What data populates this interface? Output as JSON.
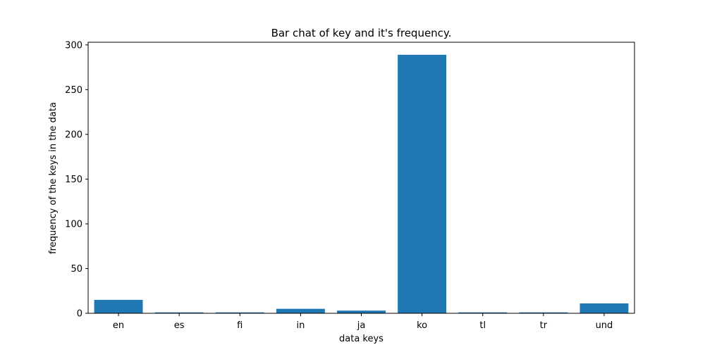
{
  "chart_data": {
    "type": "bar",
    "title": "Bar chat of key and it's frequency.",
    "xlabel": "data keys",
    "ylabel": "frequency of the keys in the data",
    "categories": [
      "en",
      "es",
      "fi",
      "in",
      "ja",
      "ko",
      "tl",
      "tr",
      "und"
    ],
    "values": [
      15,
      1,
      1,
      5,
      3,
      289,
      1,
      1,
      11
    ],
    "ylim": [
      0,
      303
    ],
    "yticks": [
      0,
      50,
      100,
      150,
      200,
      250,
      300
    ],
    "bar_color": "#1f77b4",
    "grid": false,
    "legend": "none"
  }
}
